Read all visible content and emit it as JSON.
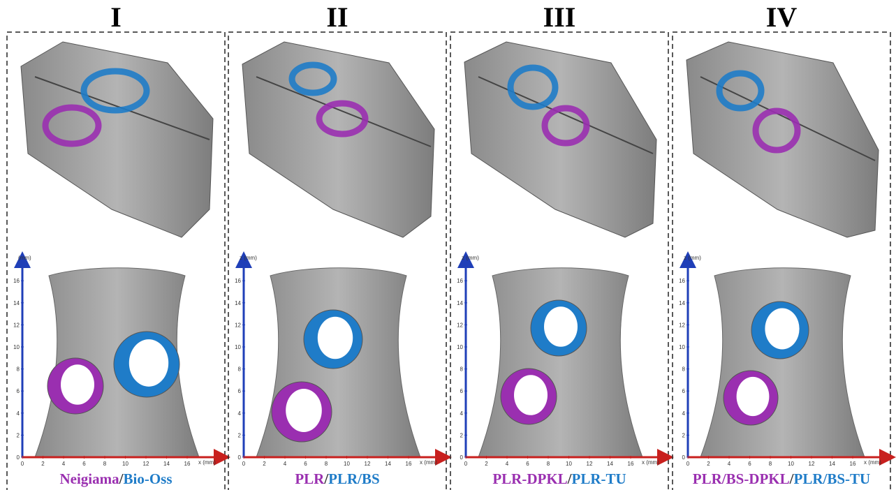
{
  "panels": [
    {
      "numeral": "I",
      "z_label": "(mm)",
      "label_a": "Neigiama",
      "separator": "/",
      "label_b": "Bio-Oss"
    },
    {
      "numeral": "II",
      "z_label": "z (mm)",
      "label_a": "PLR",
      "separator": "/",
      "label_b": "PLR/BS"
    },
    {
      "numeral": "III",
      "z_label": "z (mm)",
      "label_a": "PLR-DPKL",
      "separator": "/",
      "label_b": "PLR-TU"
    },
    {
      "numeral": "IV",
      "z_label": "z (mm)",
      "label_a": "PLR/BS-DPKL",
      "separator": "/",
      "label_b": "PLR/BS-TU"
    }
  ],
  "axes": {
    "ticks": [
      0,
      2,
      4,
      6,
      8,
      10,
      12,
      14,
      16
    ],
    "x_label": "x (mm)"
  }
}
